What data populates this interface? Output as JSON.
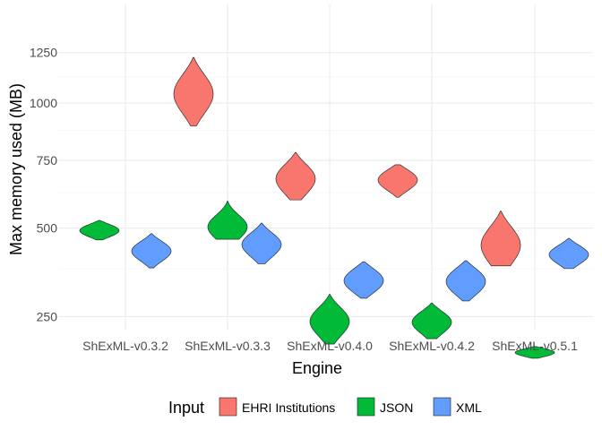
{
  "chart_data": {
    "type": "violin",
    "title": "",
    "xlabel": "Engine",
    "ylabel": "Max memory used (MB)",
    "y_scale": "sqrt",
    "ylim": [
      160,
      1300
    ],
    "y_ticks": [
      250,
      500,
      750,
      1000,
      1250
    ],
    "y_tick_labels": [
      "250",
      "500",
      "750",
      "1000",
      "1250"
    ],
    "grid": true,
    "categories": [
      "ShExML-v0.3.2",
      "ShExML-v0.3.3",
      "ShExML-v0.4.0",
      "ShExML-v0.4.2",
      "ShExML-v0.5.1"
    ],
    "legend": {
      "title": "Input",
      "position": "bottom",
      "entries": [
        {
          "label": "EHRI Institutions",
          "color": "#F8766D"
        },
        {
          "label": "JSON",
          "color": "#00BA38"
        },
        {
          "label": "XML",
          "color": "#619CFF"
        }
      ]
    },
    "violins": [
      {
        "category": "ShExML-v0.3.2",
        "series": "JSON",
        "min": 462,
        "max": 526,
        "peaks": [
          {
            "y": 492,
            "w": 1.0,
            "s": 0.35
          }
        ]
      },
      {
        "category": "ShExML-v0.3.2",
        "series": "XML",
        "min": 377,
        "max": 482,
        "peaks": [
          {
            "y": 427,
            "w": 1.0,
            "s": 0.3
          }
        ]
      },
      {
        "category": "ShExML-v0.3.3",
        "series": "EHRI Institutions",
        "min": 895,
        "max": 1225,
        "peaks": [
          {
            "y": 1070,
            "w": 1.0,
            "s": 0.28
          },
          {
            "y": 1000,
            "w": 0.55,
            "s": 0.25
          }
        ]
      },
      {
        "category": "ShExML-v0.3.3",
        "series": "JSON",
        "min": 464,
        "max": 594,
        "peaks": [
          {
            "y": 512,
            "w": 0.85,
            "s": 0.3
          },
          {
            "y": 490,
            "w": 0.5,
            "s": 0.3
          }
        ]
      },
      {
        "category": "ShExML-v0.3.3",
        "series": "XML",
        "min": 389,
        "max": 517,
        "peaks": [
          {
            "y": 447,
            "w": 1.0,
            "s": 0.3
          }
        ]
      },
      {
        "category": "ShExML-v0.4.0",
        "series": "EHRI Institutions",
        "min": 598,
        "max": 782,
        "peaks": [
          {
            "y": 690,
            "w": 1.0,
            "s": 0.3
          },
          {
            "y": 650,
            "w": 0.55,
            "s": 0.3
          }
        ]
      },
      {
        "category": "ShExML-v0.4.0",
        "series": "JSON",
        "min": 190,
        "max": 305,
        "peaks": [
          {
            "y": 245,
            "w": 1.0,
            "s": 0.28
          },
          {
            "y": 222,
            "w": 0.35,
            "s": 0.25
          }
        ]
      },
      {
        "category": "ShExML-v0.4.0",
        "series": "XML",
        "min": 295,
        "max": 395,
        "peaks": [
          {
            "y": 350,
            "w": 1.0,
            "s": 0.35
          },
          {
            "y": 325,
            "w": 0.45,
            "s": 0.3
          }
        ]
      },
      {
        "category": "ShExML-v0.4.2",
        "series": "EHRI Institutions",
        "min": 607,
        "max": 732,
        "peaks": [
          {
            "y": 672,
            "w": 1.0,
            "s": 0.35
          }
        ]
      },
      {
        "category": "ShExML-v0.4.2",
        "series": "JSON",
        "min": 201,
        "max": 283,
        "peaks": [
          {
            "y": 242,
            "w": 1.0,
            "s": 0.3
          },
          {
            "y": 225,
            "w": 0.45,
            "s": 0.3
          }
        ]
      },
      {
        "category": "ShExML-v0.4.2",
        "series": "XML",
        "min": 288,
        "max": 398,
        "peaks": [
          {
            "y": 350,
            "w": 1.0,
            "s": 0.33
          },
          {
            "y": 320,
            "w": 0.55,
            "s": 0.3
          }
        ]
      },
      {
        "category": "ShExML-v0.5.1",
        "series": "EHRI Institutions",
        "min": 383,
        "max": 558,
        "peaks": [
          {
            "y": 455,
            "w": 1.0,
            "s": 0.35
          },
          {
            "y": 430,
            "w": 0.5,
            "s": 0.3
          }
        ]
      },
      {
        "category": "ShExML-v0.5.1",
        "series": "JSON",
        "min": 162,
        "max": 185,
        "peaks": [
          {
            "y": 173,
            "w": 1.0,
            "s": 0.38
          }
        ]
      },
      {
        "category": "ShExML-v0.5.1",
        "series": "XML",
        "min": 375,
        "max": 467,
        "peaks": [
          {
            "y": 416,
            "w": 1.0,
            "s": 0.32
          }
        ]
      }
    ]
  }
}
